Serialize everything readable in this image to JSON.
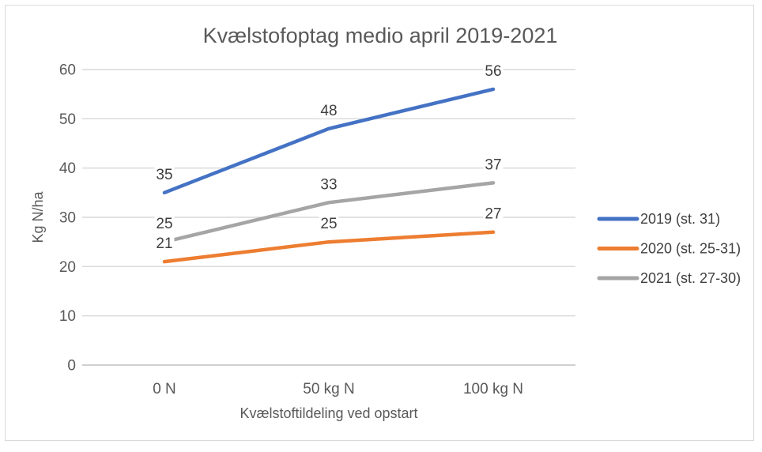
{
  "chart_data": {
    "type": "line",
    "title": "Kvælstofoptag medio april 2019-2021",
    "xlabel": "Kvælstoftildeling ved opstart",
    "ylabel": "Kg N/ha",
    "categories": [
      "0 N",
      "50 kg N",
      "100 kg N"
    ],
    "series": [
      {
        "name": "2019 (st. 31)",
        "color": "#4472C4",
        "values": [
          35,
          48,
          56
        ]
      },
      {
        "name": "2020 (st. 25-31)",
        "color": "#ED7D31",
        "values": [
          21,
          25,
          27
        ]
      },
      {
        "name": "2021 (st. 27-30)",
        "color": "#A5A5A5",
        "values": [
          25,
          33,
          37
        ]
      }
    ],
    "ylim": [
      0,
      60
    ],
    "yticks": [
      0,
      10,
      20,
      30,
      40,
      50,
      60
    ],
    "grid": true,
    "data_labels": true,
    "legend_position": "right"
  },
  "colors": {
    "gridline": "#D9D9D9",
    "axis_line": "#BFBFBF",
    "chart_border": "#D9D9D9",
    "title_text": "#595959",
    "tick_text": "#595959",
    "label_text": "#3F3F3F",
    "background": "#FFFFFF"
  }
}
